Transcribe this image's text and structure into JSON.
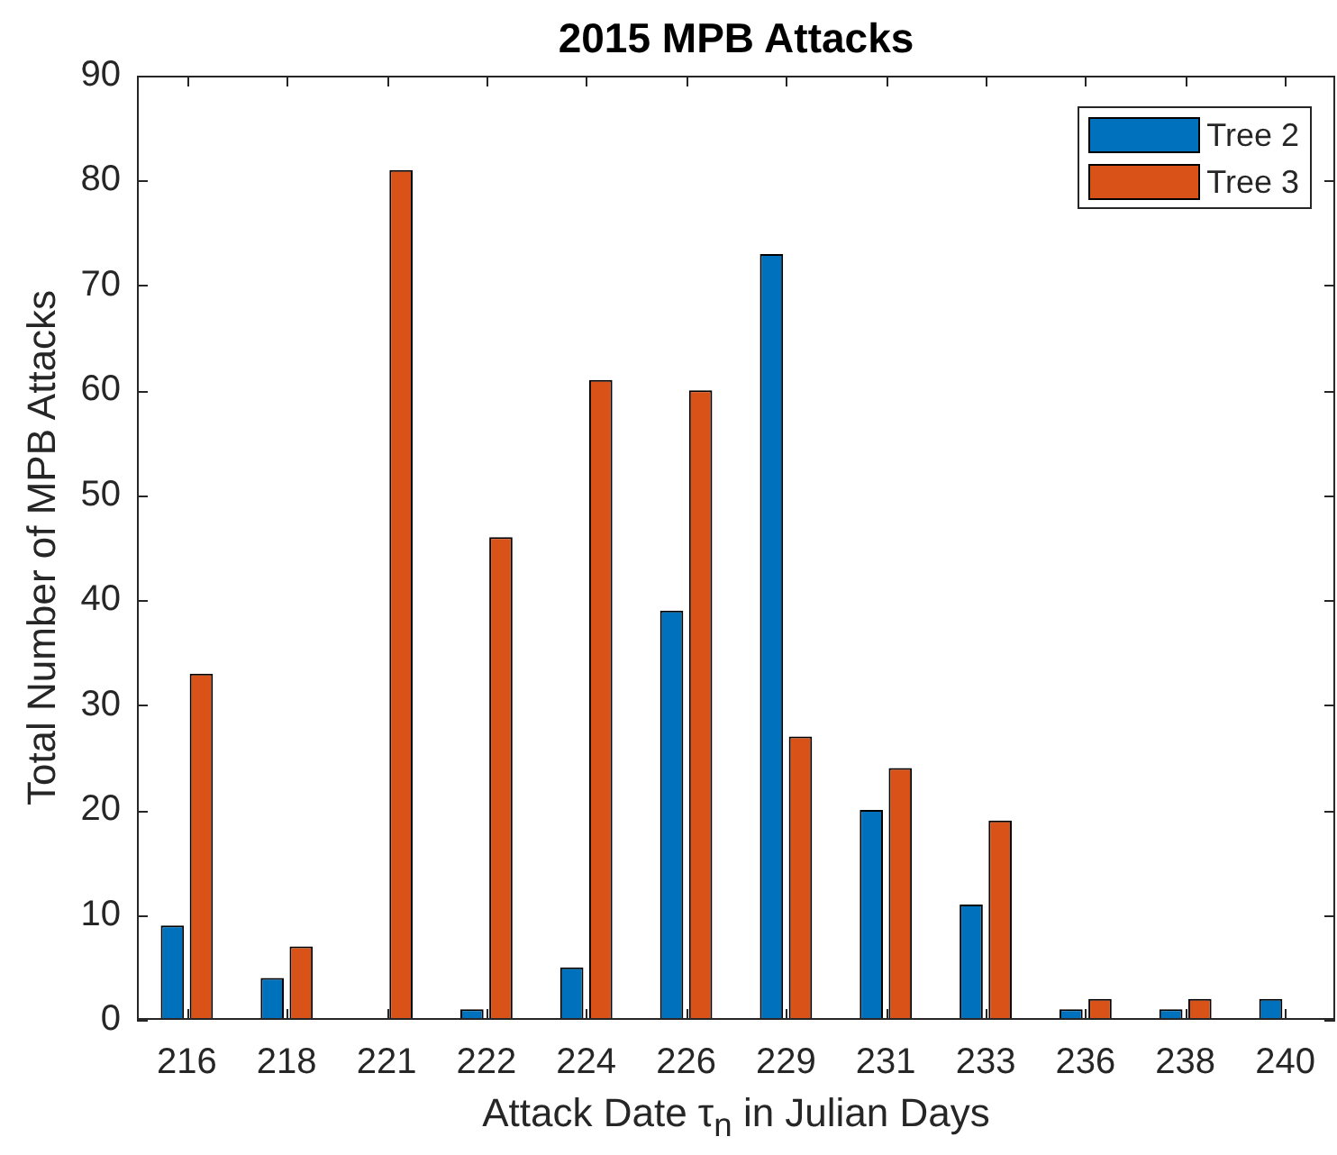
{
  "chart_data": {
    "type": "bar",
    "title": "2015 MPB Attacks",
    "xlabel": "Attack Date τ$_{n}$ in Julian Days",
    "ylabel": "Total Number of MPB Attacks",
    "categories": [
      "216",
      "218",
      "221",
      "222",
      "224",
      "226",
      "229",
      "231",
      "233",
      "236",
      "238",
      "240"
    ],
    "series": [
      {
        "name": "Tree 2",
        "color": "#0072bd",
        "values": [
          9,
          4,
          0,
          1,
          5,
          39,
          73,
          20,
          11,
          1,
          1,
          2
        ]
      },
      {
        "name": "Tree 3",
        "color": "#d95319",
        "values": [
          33,
          7,
          81,
          46,
          61,
          60,
          27,
          24,
          19,
          2,
          2,
          0
        ]
      }
    ],
    "ylim": [
      0,
      90
    ],
    "yticks": [
      0,
      10,
      20,
      30,
      40,
      50,
      60,
      70,
      80,
      90
    ],
    "legend": "top right"
  }
}
